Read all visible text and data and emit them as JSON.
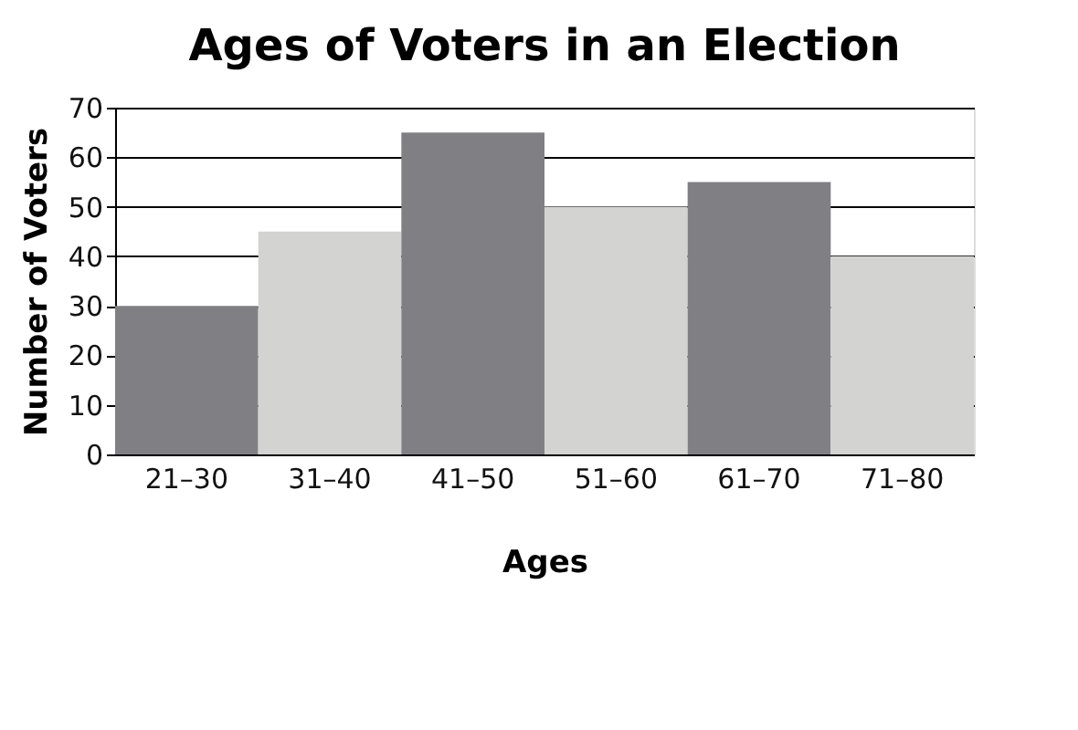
{
  "chart_data": {
    "type": "bar",
    "title": "Ages of Voters in an Election",
    "xlabel": "Ages",
    "ylabel": "Number of Voters",
    "categories": [
      "21–30",
      "31–40",
      "41–50",
      "51–60",
      "61–70",
      "71–80"
    ],
    "values": [
      30,
      45,
      65,
      50,
      55,
      40
    ],
    "colors": [
      "#808084",
      "#d3d4d2",
      "#808084",
      "#d3d4d2",
      "#808084",
      "#d3d4d2"
    ],
    "ylim": [
      0,
      70
    ],
    "yticks": [
      0,
      10,
      20,
      30,
      40,
      50,
      60,
      70
    ],
    "grid": "y"
  }
}
